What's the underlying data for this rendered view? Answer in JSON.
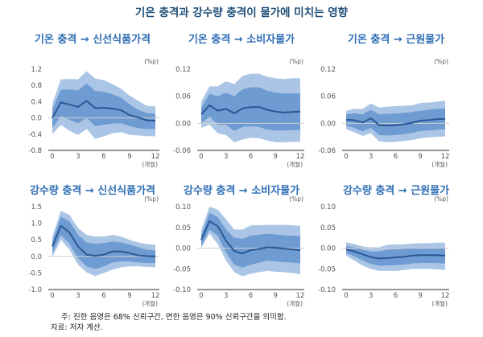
{
  "title": "기온 충격과 강수량 충격이 물가에 미치는 영향",
  "colors": {
    "band90": "#aac5e5",
    "band68": "#6e9bd1",
    "line": "#2a5896",
    "zero": "#cfcfcf",
    "axis": "#555555"
  },
  "footnote": {
    "note": "주: 진한 음영은 68% 신뢰구간, 연한 음영은 90% 신뢰구간을 의미함.",
    "source": "자료: 저자 계산."
  },
  "chart_data": [
    {
      "type": "area",
      "title": "기온 충격 → 신선식품가격",
      "unit": "(%p)",
      "xlabel": "(개월)",
      "x": [
        0,
        1,
        2,
        3,
        4,
        5,
        6,
        7,
        8,
        9,
        10,
        11,
        12
      ],
      "xticks": [
        0,
        3,
        6,
        9,
        12
      ],
      "ylim": [
        -0.8,
        1.2
      ],
      "yticks": [
        "1.2",
        "0.8",
        "0.4",
        "0.0",
        "-0.4",
        "-0.8"
      ],
      "mean": [
        0,
        0.38,
        0.33,
        0.27,
        0.42,
        0.24,
        0.25,
        0.23,
        0.19,
        0.07,
        0.01,
        -0.06,
        -0.07
      ],
      "ci68_upper": [
        0.2,
        0.7,
        0.7,
        0.68,
        0.85,
        0.66,
        0.64,
        0.58,
        0.5,
        0.33,
        0.2,
        0.12,
        0.1
      ],
      "ci68_lower": [
        -0.25,
        0.05,
        -0.05,
        -0.13,
        0,
        -0.2,
        -0.17,
        -0.14,
        -0.13,
        -0.2,
        -0.25,
        -0.27,
        -0.27
      ],
      "ci90_upper": [
        0.35,
        0.95,
        0.96,
        0.95,
        1.15,
        0.97,
        0.93,
        0.83,
        0.72,
        0.55,
        0.42,
        0.3,
        0.28
      ],
      "ci90_lower": [
        -0.4,
        -0.17,
        -0.32,
        -0.42,
        -0.27,
        -0.52,
        -0.45,
        -0.38,
        -0.35,
        -0.42,
        -0.43,
        -0.45,
        -0.45
      ]
    },
    {
      "type": "area",
      "title": "기온 충격 → 소비자물가",
      "unit": "(%p)",
      "xlabel": "(개월)",
      "x": [
        0,
        1,
        2,
        3,
        4,
        5,
        6,
        7,
        8,
        9,
        10,
        11,
        12
      ],
      "xticks": [
        0,
        3,
        6,
        9,
        12
      ],
      "ylim": [
        -0.06,
        0.12
      ],
      "yticks": [
        "0.12",
        "0.06",
        "0.00",
        "-0.06"
      ],
      "mean": [
        0.02,
        0.04,
        0.028,
        0.032,
        0.022,
        0.033,
        0.036,
        0.036,
        0.03,
        0.026,
        0.024,
        0.025,
        0.026
      ],
      "ci68_upper": [
        0.035,
        0.065,
        0.06,
        0.068,
        0.06,
        0.075,
        0.08,
        0.08,
        0.072,
        0.068,
        0.066,
        0.066,
        0.066
      ],
      "ci68_lower": [
        0,
        0.015,
        -0.003,
        -0.003,
        -0.017,
        -0.008,
        -0.006,
        -0.008,
        -0.014,
        -0.016,
        -0.016,
        -0.015,
        -0.015
      ],
      "ci90_upper": [
        0.048,
        0.082,
        0.082,
        0.093,
        0.087,
        0.105,
        0.11,
        0.11,
        0.103,
        0.1,
        0.098,
        0.1,
        0.1
      ],
      "ci90_lower": [
        -0.01,
        -0.003,
        -0.022,
        -0.026,
        -0.042,
        -0.036,
        -0.032,
        -0.033,
        -0.038,
        -0.042,
        -0.042,
        -0.041,
        -0.041
      ]
    },
    {
      "type": "area",
      "title": "기온 충격 → 근원물가",
      "unit": "(%p)",
      "xlabel": "(개월)",
      "x": [
        0,
        1,
        2,
        3,
        4,
        5,
        6,
        7,
        8,
        9,
        10,
        11,
        12
      ],
      "xticks": [
        0,
        3,
        6,
        9,
        12
      ],
      "ylim": [
        -0.06,
        0.12
      ],
      "yticks": [
        "0.12",
        "0.06",
        "0.00",
        "-0.06"
      ],
      "mean": [
        0.008,
        0.007,
        0.002,
        0.011,
        -0.004,
        -0.005,
        -0.004,
        -0.002,
        0.001,
        0.006,
        0.007,
        0.009,
        0.01
      ],
      "ci68_upper": [
        0.02,
        0.022,
        0.02,
        0.03,
        0.02,
        0.021,
        0.022,
        0.023,
        0.025,
        0.028,
        0.03,
        0.032,
        0.033
      ],
      "ci68_lower": [
        -0.005,
        -0.01,
        -0.018,
        -0.01,
        -0.026,
        -0.027,
        -0.026,
        -0.024,
        -0.021,
        -0.017,
        -0.016,
        -0.014,
        -0.013
      ],
      "ci90_upper": [
        0.028,
        0.032,
        0.032,
        0.044,
        0.035,
        0.037,
        0.038,
        0.039,
        0.04,
        0.045,
        0.046,
        0.048,
        0.05
      ],
      "ci90_lower": [
        -0.013,
        -0.02,
        -0.028,
        -0.022,
        -0.04,
        -0.042,
        -0.041,
        -0.039,
        -0.037,
        -0.033,
        -0.031,
        -0.03,
        -0.029
      ]
    },
    {
      "type": "area",
      "title": "강수량 충격 → 신선식품가격",
      "unit": "(%p)",
      "xlabel": "(개월)",
      "x": [
        0,
        1,
        2,
        3,
        4,
        5,
        6,
        7,
        8,
        9,
        10,
        11,
        12
      ],
      "xticks": [
        0,
        3,
        6,
        9,
        12
      ],
      "ylim": [
        -1.0,
        1.5
      ],
      "yticks": [
        "1.5",
        "1.0",
        "0.5",
        "0.0",
        "-0.5",
        "-1.0"
      ],
      "mean": [
        0.3,
        0.92,
        0.72,
        0.3,
        0.05,
        0.02,
        0.05,
        0.15,
        0.15,
        0.1,
        0.03,
        0.01,
        0
      ],
      "ci68_upper": [
        0.45,
        1.2,
        1.05,
        0.65,
        0.42,
        0.38,
        0.4,
        0.45,
        0.42,
        0.36,
        0.28,
        0.2,
        0.18
      ],
      "ci68_lower": [
        0.1,
        0.65,
        0.38,
        -0.05,
        -0.3,
        -0.38,
        -0.3,
        -0.18,
        -0.15,
        -0.15,
        -0.18,
        -0.2,
        -0.2
      ],
      "ci90_upper": [
        0.6,
        1.38,
        1.25,
        0.85,
        0.65,
        0.6,
        0.6,
        0.65,
        0.6,
        0.5,
        0.42,
        0.37,
        0.35
      ],
      "ci90_lower": [
        -0.02,
        0.5,
        0.2,
        -0.25,
        -0.48,
        -0.6,
        -0.5,
        -0.4,
        -0.33,
        -0.3,
        -0.3,
        -0.32,
        -0.33
      ]
    },
    {
      "type": "area",
      "title": "강수량 충격 → 소비자물가",
      "unit": "(%p)",
      "xlabel": "(개월)",
      "x": [
        0,
        1,
        2,
        3,
        4,
        5,
        6,
        7,
        8,
        9,
        10,
        11,
        12
      ],
      "xticks": [
        0,
        3,
        6,
        9,
        12
      ],
      "ylim": [
        -0.1,
        0.1
      ],
      "yticks": [
        "0.10",
        "0.05",
        "0.00",
        "-0.05",
        "-0.10"
      ],
      "mean": [
        0.02,
        0.065,
        0.053,
        0.018,
        -0.007,
        -0.013,
        -0.005,
        -0.002,
        0.002,
        0.001,
        -0.001,
        -0.003,
        -0.005
      ],
      "ci68_upper": [
        0.03,
        0.085,
        0.075,
        0.045,
        0.025,
        0.022,
        0.03,
        0.032,
        0.035,
        0.033,
        0.031,
        0.03,
        0.029
      ],
      "ci68_lower": [
        0.005,
        0.045,
        0.03,
        -0.01,
        -0.04,
        -0.047,
        -0.04,
        -0.035,
        -0.03,
        -0.032,
        -0.034,
        -0.035,
        -0.037
      ],
      "ci90_upper": [
        0.043,
        0.1,
        0.093,
        0.07,
        0.045,
        0.045,
        0.055,
        0.055,
        0.056,
        0.056,
        0.056,
        0.055,
        0.054
      ],
      "ci90_lower": [
        0,
        0.035,
        0.01,
        -0.03,
        -0.058,
        -0.068,
        -0.062,
        -0.058,
        -0.055,
        -0.057,
        -0.058,
        -0.06,
        -0.063
      ]
    },
    {
      "type": "area",
      "title": "강수량 충격 → 근원물가",
      "unit": "(%p)",
      "xlabel": "(개월)",
      "x": [
        0,
        1,
        2,
        3,
        4,
        5,
        6,
        7,
        8,
        9,
        10,
        11,
        12
      ],
      "xticks": [
        0,
        3,
        6,
        9,
        12
      ],
      "ylim": [
        -0.1,
        0.1
      ],
      "yticks": [
        "0.10",
        "0.05",
        "0.00",
        "-0.05",
        "-0.10"
      ],
      "mean": [
        -0.003,
        -0.008,
        -0.015,
        -0.022,
        -0.025,
        -0.024,
        -0.022,
        -0.021,
        -0.018,
        -0.017,
        -0.017,
        -0.017,
        -0.018
      ],
      "ci68_upper": [
        0.005,
        0.002,
        -0.004,
        -0.008,
        -0.008,
        -0.004,
        -0.003,
        -0.002,
        0,
        0,
        0,
        0,
        0
      ],
      "ci68_lower": [
        -0.012,
        -0.02,
        -0.03,
        -0.038,
        -0.042,
        -0.042,
        -0.041,
        -0.04,
        -0.037,
        -0.036,
        -0.036,
        -0.036,
        -0.037
      ],
      "ci90_upper": [
        0.014,
        0.01,
        0.004,
        0.002,
        0.002,
        0.008,
        0.009,
        0.009,
        0.011,
        0.012,
        0.012,
        0.013,
        0.013
      ],
      "ci90_lower": [
        -0.018,
        -0.03,
        -0.042,
        -0.05,
        -0.055,
        -0.055,
        -0.055,
        -0.053,
        -0.05,
        -0.05,
        -0.05,
        -0.051,
        -0.053
      ]
    }
  ]
}
